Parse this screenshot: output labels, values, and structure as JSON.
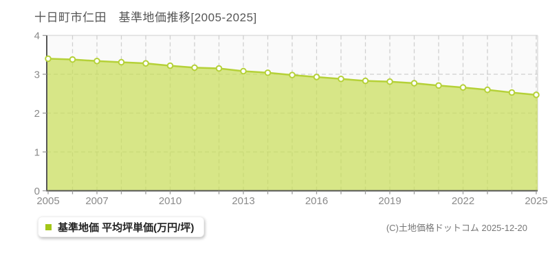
{
  "page": {
    "title": "十日町市仁田　基準地価推移[2005-2025]"
  },
  "chart_data": {
    "type": "area",
    "title": "十日町市仁田　基準地価推移[2005-2025]",
    "x": [
      2005,
      2006,
      2007,
      2008,
      2009,
      2010,
      2011,
      2012,
      2013,
      2014,
      2015,
      2016,
      2017,
      2018,
      2019,
      2020,
      2021,
      2022,
      2023,
      2024,
      2025
    ],
    "values": [
      3.4,
      3.38,
      3.34,
      3.31,
      3.28,
      3.22,
      3.17,
      3.15,
      3.08,
      3.04,
      2.98,
      2.93,
      2.88,
      2.83,
      2.81,
      2.77,
      2.71,
      2.66,
      2.6,
      2.53,
      2.47
    ],
    "series_name": "基準地価",
    "ylabel": "",
    "xlabel": "",
    "ylim": [
      0,
      4
    ],
    "yticks": [
      0,
      1,
      2,
      3,
      4
    ],
    "xtick_labels": [
      2005,
      2007,
      2010,
      2013,
      2016,
      2019,
      2022,
      2025
    ],
    "grid": true,
    "grid_style": "dashed",
    "legend": {
      "label": "基準地価 平均坪単価(万円/坪)",
      "position": "bottom-left"
    },
    "colors": {
      "area_fill": "rgba(199,221,86,0.7)",
      "line": "#b5d138",
      "point_fill": "#ffffff",
      "point_stroke": "#b5d138",
      "legend_swatch": "#a3c618",
      "grid": "#cfcfcf",
      "axis": "#555555",
      "plot_border": "#dddddd",
      "plot_bg": "#fafafa",
      "tick_label": "#8a8a8a",
      "title_color": "#555555"
    }
  },
  "footer": {
    "copyright": "(C)土地価格ドットコム 2025-12-20"
  }
}
